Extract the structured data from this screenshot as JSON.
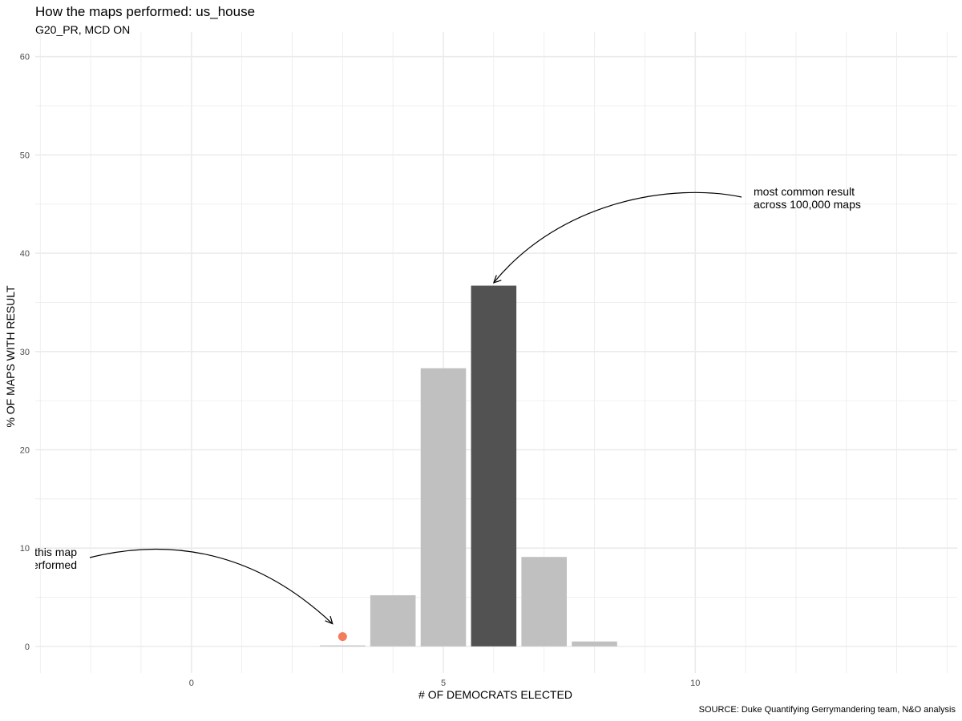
{
  "chart_data": {
    "type": "bar",
    "title": "How the maps performed: us_house",
    "subtitle": "G20_PR, MCD ON",
    "xlabel": "# OF DEMOCRATS ELECTED",
    "ylabel": "% OF MAPS WITH RESULT",
    "caption": "SOURCE: Duke Quantifying Gerrymandering team, N&O analysis",
    "xlim": [
      -3.1,
      15.2
    ],
    "ylim": [
      -2.7,
      62.5
    ],
    "x_ticks": [
      0,
      5,
      10
    ],
    "y_ticks": [
      0,
      10,
      20,
      30,
      40,
      50,
      60
    ],
    "grid": true,
    "bars": [
      {
        "x": 3,
        "value": 0.1,
        "highlight": false
      },
      {
        "x": 4,
        "value": 5.2,
        "highlight": false
      },
      {
        "x": 5,
        "value": 28.3,
        "highlight": false
      },
      {
        "x": 6,
        "value": 36.7,
        "highlight": true
      },
      {
        "x": 7,
        "value": 9.1,
        "highlight": false
      },
      {
        "x": 8,
        "value": 0.5,
        "highlight": false
      }
    ],
    "colors": {
      "bar": "#c0c0c0",
      "highlight_bar": "#525252",
      "point": "#f47c5a",
      "grid": "#ebebeb"
    },
    "point": {
      "x": 3,
      "y": 1
    },
    "annotations": [
      {
        "id": "this-map",
        "lines": [
          "How this map",
          "performed"
        ]
      },
      {
        "id": "most-common",
        "lines": [
          "most common result",
          "across 100,000 maps"
        ]
      }
    ]
  }
}
